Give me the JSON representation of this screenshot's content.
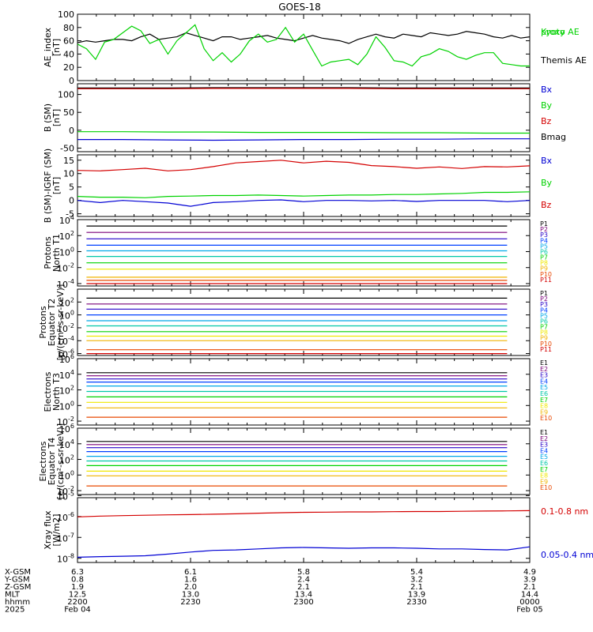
{
  "title": "GOES-18",
  "colors": {
    "black": "#000000",
    "red": "#d40000",
    "green": "#00d200",
    "blue": "#0000d4",
    "p_colors": [
      "#000000",
      "#7a0078",
      "#2600c8",
      "#0040ff",
      "#00a8e8",
      "#00c8a8",
      "#00d200",
      "#f0e800",
      "#f0b400",
      "#e84800",
      "#d40000"
    ],
    "e_colors": [
      "#000000",
      "#7a0078",
      "#2600c8",
      "#0040ff",
      "#00a8e8",
      "#00c8a8",
      "#00d200",
      "#f0e800",
      "#f0b400",
      "#e84800",
      "#d40000"
    ]
  },
  "ephemeris": {
    "row_labels": [
      "X-GSM",
      "Y-GSM",
      "Z-GSM",
      "MLT",
      "hhmm",
      "2025"
    ],
    "columns": [
      [
        "6.3",
        "0.8",
        "1.9",
        "12.5",
        "2200",
        "Feb 04"
      ],
      [
        "6.1",
        "1.6",
        "2.0",
        "13.0",
        "2230",
        ""
      ],
      [
        "5.8",
        "2.4",
        "2.1",
        "13.4",
        "2300",
        ""
      ],
      [
        "5.4",
        "3.2",
        "2.1",
        "13.9",
        "2330",
        ""
      ],
      [
        "4.9",
        "3.9",
        "2.1",
        "14.4",
        "0000",
        "Feb 05"
      ]
    ]
  },
  "chart_data": [
    {
      "type": "line",
      "ylabel": [
        "AE_index",
        "[nT]"
      ],
      "ylim": [
        0,
        100
      ],
      "yticks": [
        0,
        20,
        40,
        60,
        80,
        100
      ],
      "legend": [
        "Kyoto",
        "proxy AE",
        "Themis AE"
      ],
      "x": [
        0,
        2,
        4,
        6,
        8,
        10,
        12,
        14,
        16,
        18,
        20,
        22,
        24,
        26,
        28,
        30,
        32,
        34,
        36,
        38,
        40,
        42,
        44,
        46,
        48,
        50,
        52,
        54,
        56,
        58,
        60,
        62,
        64,
        66,
        68,
        70,
        72,
        74,
        76,
        78,
        80,
        82,
        84,
        86,
        88,
        90,
        92,
        94,
        96,
        98,
        100
      ],
      "series": [
        {
          "name": "Themis AE",
          "color": "black",
          "values": [
            57,
            60,
            58,
            60,
            62,
            62,
            60,
            66,
            70,
            62,
            64,
            66,
            72,
            68,
            64,
            60,
            66,
            66,
            62,
            64,
            66,
            68,
            64,
            62,
            60,
            64,
            68,
            64,
            62,
            60,
            56,
            62,
            66,
            70,
            66,
            64,
            70,
            68,
            66,
            72,
            70,
            68,
            70,
            74,
            72,
            70,
            66,
            64,
            68,
            64,
            66
          ]
        },
        {
          "name": "Kyoto",
          "color": "green",
          "values": [
            55,
            48,
            32,
            58,
            62,
            72,
            82,
            75,
            56,
            62,
            40,
            60,
            72,
            84,
            48,
            30,
            42,
            28,
            40,
            60,
            70,
            58,
            62,
            80,
            58,
            70,
            46,
            22,
            28,
            30,
            32,
            24,
            40,
            66,
            50,
            30,
            28,
            22,
            36,
            40,
            48,
            44,
            36,
            32,
            38,
            42,
            42,
            26,
            24,
            22,
            22
          ]
        }
      ]
    },
    {
      "type": "line",
      "ylabel": [
        "B (SM)",
        "[nT]"
      ],
      "ylim": [
        -60,
        130
      ],
      "yticks": [
        -50,
        0,
        50,
        100
      ],
      "legend": [
        "Bx",
        "By",
        "Bz",
        "Bmag"
      ],
      "x": [
        0,
        10,
        20,
        30,
        40,
        50,
        60,
        70,
        80,
        90,
        100
      ],
      "series": [
        {
          "name": "Bmag",
          "color": "black",
          "values": [
            118,
            118,
            118,
            119,
            119,
            119,
            119,
            118,
            118,
            118,
            118
          ]
        },
        {
          "name": "Bz",
          "color": "red",
          "values": [
            116,
            116,
            116,
            117,
            117,
            117,
            117,
            116,
            116,
            116,
            116
          ]
        },
        {
          "name": "By",
          "color": "green",
          "values": [
            -4,
            -4,
            -5,
            -5,
            -6,
            -6,
            -6,
            -7,
            -7,
            -8,
            -8
          ]
        },
        {
          "name": "Bx",
          "color": "blue",
          "values": [
            -26,
            -26,
            -27,
            -28,
            -27,
            -26,
            -26,
            -25,
            -25,
            -24,
            -24
          ]
        }
      ]
    },
    {
      "type": "line",
      "ylabel": [
        "B (SM)-IGRF (SM)",
        "[nT]"
      ],
      "ylim": [
        -6,
        17
      ],
      "yticks": [
        -5,
        0,
        5,
        10,
        15
      ],
      "legend": [
        "Bx",
        "By",
        "Bz"
      ],
      "x": [
        0,
        5,
        10,
        15,
        20,
        25,
        30,
        35,
        40,
        45,
        50,
        55,
        60,
        65,
        70,
        75,
        80,
        85,
        90,
        95,
        100
      ],
      "series": [
        {
          "name": "Bz",
          "color": "red",
          "values": [
            11.2,
            11.0,
            11.5,
            12.0,
            11.0,
            11.5,
            12.6,
            14.0,
            14.5,
            15.0,
            14.0,
            14.6,
            14.2,
            13.0,
            12.6,
            12.0,
            12.5,
            11.9,
            12.6,
            12.5,
            12.9
          ]
        },
        {
          "name": "By",
          "color": "green",
          "values": [
            1.5,
            1.2,
            1.2,
            1.0,
            1.5,
            1.6,
            1.8,
            1.8,
            2.0,
            1.8,
            1.6,
            1.8,
            2.0,
            2.0,
            2.2,
            2.2,
            2.4,
            2.6,
            3.0,
            3.0,
            3.2
          ]
        },
        {
          "name": "Bx",
          "color": "blue",
          "values": [
            0.0,
            -0.8,
            0.0,
            -0.5,
            -1.0,
            -2.2,
            -0.8,
            -0.5,
            0.0,
            0.2,
            -0.5,
            0.0,
            0.0,
            -0.2,
            0.0,
            -0.4,
            0.0,
            0.0,
            0.0,
            -0.5,
            0.0
          ]
        }
      ]
    },
    {
      "type": "line",
      "ylabel": [
        "Protons",
        "North T1"
      ],
      "log": true,
      "ylim": [
        -4.3,
        4
      ],
      "yticks": [
        -4,
        -2,
        0,
        2,
        4
      ],
      "legend": [
        "P1",
        "P2",
        "P3",
        "P4",
        "P5",
        "P6",
        "P7",
        "P8",
        "P9",
        "P10",
        "P11"
      ],
      "x": [
        2,
        95
      ],
      "series": [
        {
          "name": "P1",
          "log_values": [
            3.2,
            3.2
          ]
        },
        {
          "name": "P2",
          "log_values": [
            2.4,
            2.4
          ]
        },
        {
          "name": "P3",
          "log_values": [
            1.6,
            1.6
          ]
        },
        {
          "name": "P4",
          "log_values": [
            0.8,
            0.8
          ]
        },
        {
          "name": "P5",
          "log_values": [
            0.1,
            0.1
          ]
        },
        {
          "name": "P6",
          "log_values": [
            -0.6,
            -0.6
          ]
        },
        {
          "name": "P7",
          "log_values": [
            -1.4,
            -1.4
          ]
        },
        {
          "name": "P8",
          "log_values": [
            -2.2,
            -2.2
          ]
        },
        {
          "name": "P9",
          "log_values": [
            -3.2,
            -3.2
          ]
        },
        {
          "name": "P10",
          "log_values": [
            -3.6,
            -3.6
          ]
        },
        {
          "name": "P11",
          "log_values": [
            -4.0,
            -4.0
          ]
        }
      ]
    },
    {
      "type": "line",
      "ylabel": [
        "Protons",
        "Equator T2",
        "[p/(cm²-s-sr-keV)]"
      ],
      "log": true,
      "ylim": [
        -6.3,
        4
      ],
      "yticks": [
        -6,
        -4,
        -2,
        0,
        2
      ],
      "legend": [
        "P1",
        "P2",
        "P3",
        "P4",
        "P5",
        "P6",
        "P7",
        "P8",
        "P9",
        "P10",
        "P11"
      ],
      "x": [
        2,
        95
      ],
      "series": [
        {
          "name": "P1",
          "log_values": [
            2.6,
            2.6
          ]
        },
        {
          "name": "P2",
          "log_values": [
            1.7,
            1.7
          ]
        },
        {
          "name": "P3",
          "log_values": [
            0.9,
            0.9
          ]
        },
        {
          "name": "P4",
          "log_values": [
            0.0,
            0.0
          ]
        },
        {
          "name": "P5",
          "log_values": [
            -0.9,
            -0.9
          ]
        },
        {
          "name": "P6",
          "log_values": [
            -1.7,
            -1.7
          ]
        },
        {
          "name": "P7",
          "log_values": [
            -2.6,
            -2.6
          ]
        },
        {
          "name": "P8",
          "log_values": [
            -3.3,
            -3.3
          ]
        },
        {
          "name": "P9",
          "log_values": [
            -4.0,
            -4.0
          ]
        },
        {
          "name": "P10",
          "log_values": [
            -5.4,
            -5.4
          ]
        },
        {
          "name": "P11",
          "log_values": [
            -6.0,
            -6.0
          ]
        }
      ]
    },
    {
      "type": "line",
      "ylabel": [
        "Electrons",
        "North T3"
      ],
      "log": true,
      "ylim": [
        -2.5,
        6
      ],
      "yticks": [
        -2,
        0,
        2,
        4,
        6
      ],
      "legend": [
        "E1",
        "E2",
        "E3",
        "E4",
        "E5",
        "E6",
        "E7",
        "E8",
        "E9",
        "E10"
      ],
      "x": [
        2,
        95
      ],
      "series": [
        {
          "name": "E1",
          "log_values": [
            4.2,
            4.2
          ]
        },
        {
          "name": "E2",
          "log_values": [
            3.8,
            3.8
          ]
        },
        {
          "name": "E3",
          "log_values": [
            3.4,
            3.4
          ]
        },
        {
          "name": "E4",
          "log_values": [
            3.0,
            3.0
          ]
        },
        {
          "name": "E5",
          "log_values": [
            2.5,
            2.5
          ]
        },
        {
          "name": "E6",
          "log_values": [
            1.8,
            1.8
          ]
        },
        {
          "name": "E7",
          "log_values": [
            1.1,
            1.1
          ]
        },
        {
          "name": "E8",
          "log_values": [
            0.4,
            0.4
          ]
        },
        {
          "name": "E9",
          "log_values": [
            -0.3,
            -0.3
          ]
        },
        {
          "name": "E10",
          "log_values": [
            -1.5,
            -1.5
          ]
        }
      ]
    },
    {
      "type": "line",
      "ylabel": [
        "Electrons",
        "Equator T4",
        "[e/(cm²-s-sr-keV)]"
      ],
      "log": true,
      "ylim": [
        -2.5,
        6
      ],
      "yticks": [
        -2,
        0,
        2,
        4,
        6
      ],
      "legend": [
        "E1",
        "E2",
        "E3",
        "E4",
        "E5",
        "E6",
        "E7",
        "E8",
        "E9",
        "E10"
      ],
      "x": [
        2,
        95
      ],
      "series": [
        {
          "name": "E1",
          "log_values": [
            4.3,
            4.3
          ]
        },
        {
          "name": "E2",
          "log_values": [
            3.9,
            3.9
          ]
        },
        {
          "name": "E3",
          "log_values": [
            3.5,
            3.5
          ]
        },
        {
          "name": "E4",
          "log_values": [
            3.0,
            3.0
          ]
        },
        {
          "name": "E5",
          "log_values": [
            2.4,
            2.4
          ]
        },
        {
          "name": "E6",
          "log_values": [
            1.8,
            1.8
          ]
        },
        {
          "name": "E7",
          "log_values": [
            1.2,
            1.2
          ]
        },
        {
          "name": "E8",
          "log_values": [
            0.5,
            0.5
          ]
        },
        {
          "name": "E9",
          "log_values": [
            -0.1,
            -0.1
          ]
        },
        {
          "name": "E10",
          "log_values": [
            -1.4,
            -1.4
          ]
        }
      ]
    },
    {
      "type": "line",
      "ylabel": [
        "Xray flux",
        "[W/m2]"
      ],
      "log": true,
      "ylim": [
        -8.2,
        -5.1
      ],
      "yticks": [
        -8,
        -7,
        -6,
        -5
      ],
      "legend": [
        "0.1-0.8 nm",
        "0.05-0.4 nm"
      ],
      "x": [
        0,
        5,
        10,
        15,
        20,
        25,
        30,
        35,
        40,
        45,
        50,
        55,
        60,
        65,
        70,
        75,
        80,
        85,
        90,
        95,
        100
      ],
      "series": [
        {
          "name": "0.1-0.8 nm",
          "color": "red",
          "log_values": [
            -6.02,
            -5.98,
            -5.96,
            -5.94,
            -5.92,
            -5.91,
            -5.89,
            -5.87,
            -5.84,
            -5.82,
            -5.8,
            -5.79,
            -5.78,
            -5.78,
            -5.77,
            -5.76,
            -5.76,
            -5.75,
            -5.74,
            -5.73,
            -5.72
          ]
        },
        {
          "name": "0.05-0.4 nm",
          "color": "blue",
          "log_values": [
            -7.95,
            -7.92,
            -7.9,
            -7.88,
            -7.8,
            -7.7,
            -7.62,
            -7.6,
            -7.55,
            -7.5,
            -7.48,
            -7.5,
            -7.52,
            -7.5,
            -7.5,
            -7.52,
            -7.55,
            -7.55,
            -7.58,
            -7.6,
            -7.45
          ]
        }
      ]
    }
  ]
}
